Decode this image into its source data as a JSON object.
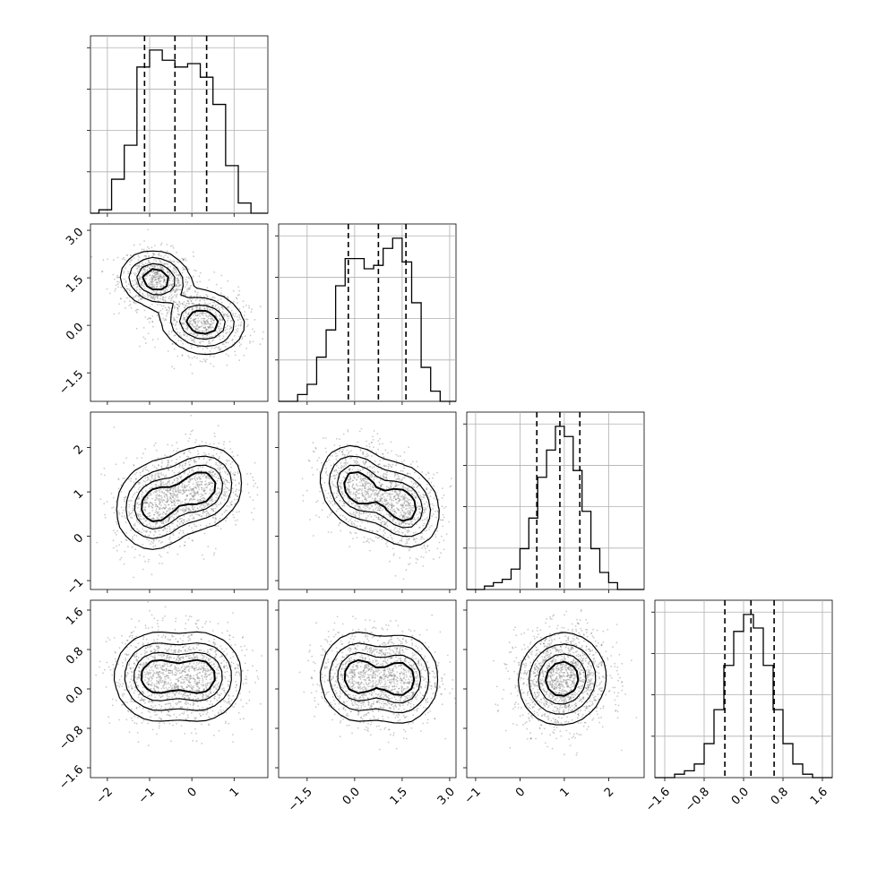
{
  "chart_data": {
    "type": "corner",
    "description_free": true,
    "variables": [
      {
        "range": [
          -2.4,
          1.8
        ],
        "ticks": [
          -2,
          -1,
          0,
          1
        ],
        "tick_labels": [
          "−2",
          "−1",
          "0",
          "1"
        ],
        "quantiles": [
          -1.12,
          -0.4,
          0.35
        ],
        "hist_bins": [
          -2.2,
          -1.9,
          -1.6,
          -1.3,
          -1.0,
          -0.7,
          -0.4,
          -0.1,
          0.2,
          0.5,
          0.8,
          1.1,
          1.4
        ],
        "hist_values": [
          0.02,
          0.2,
          0.4,
          0.86,
          0.96,
          0.9,
          0.86,
          0.88,
          0.8,
          0.64,
          0.28,
          0.06,
          0.0
        ]
      },
      {
        "range": [
          -2.4,
          3.2
        ],
        "ticks": [
          -1.5,
          0.0,
          1.5,
          3.0
        ],
        "tick_labels": [
          "−1.5",
          "0.0",
          "1.5",
          "3.0"
        ],
        "quantiles": [
          -0.2,
          0.75,
          1.62
        ],
        "hist_bins": [
          -2.1,
          -1.8,
          -1.5,
          -1.2,
          -0.9,
          -0.6,
          -0.3,
          0.0,
          0.3,
          0.6,
          0.9,
          1.2,
          1.5,
          1.8,
          2.1,
          2.4,
          2.7
        ],
        "hist_values": [
          0.0,
          0.04,
          0.1,
          0.26,
          0.42,
          0.68,
          0.84,
          0.84,
          0.78,
          0.8,
          0.9,
          0.96,
          0.82,
          0.58,
          0.2,
          0.06,
          0.0
        ]
      },
      {
        "range": [
          -1.2,
          2.8
        ],
        "ticks": [
          -1,
          0,
          1,
          2
        ],
        "tick_labels": [
          "−1",
          "0",
          "1",
          "2"
        ],
        "quantiles": [
          0.38,
          0.9,
          1.35
        ],
        "hist_bins": [
          -1.0,
          -0.8,
          -0.6,
          -0.4,
          -0.2,
          0.0,
          0.2,
          0.4,
          0.6,
          0.8,
          1.0,
          1.2,
          1.4,
          1.6,
          1.8,
          2.0,
          2.2,
          2.4
        ],
        "hist_values": [
          0.0,
          0.02,
          0.04,
          0.06,
          0.12,
          0.24,
          0.42,
          0.66,
          0.82,
          0.96,
          0.9,
          0.7,
          0.46,
          0.24,
          0.1,
          0.04,
          0.0
        ]
      },
      {
        "range": [
          -1.8,
          1.8
        ],
        "ticks": [
          -1.6,
          -0.8,
          0.0,
          0.8,
          1.6
        ],
        "tick_labels": [
          "−1.6",
          "−0.8",
          "0.0",
          "0.8",
          "1.6"
        ],
        "quantiles": [
          -0.38,
          0.15,
          0.62
        ],
        "hist_bins": [
          -1.6,
          -1.4,
          -1.2,
          -1.0,
          -0.8,
          -0.6,
          -0.4,
          -0.2,
          0.0,
          0.2,
          0.4,
          0.6,
          0.8,
          1.0,
          1.2,
          1.4,
          1.6
        ],
        "hist_values": [
          0.0,
          0.02,
          0.04,
          0.08,
          0.2,
          0.4,
          0.66,
          0.86,
          0.96,
          0.88,
          0.66,
          0.4,
          0.2,
          0.08,
          0.02,
          0.0
        ]
      }
    ],
    "pairs": [
      {
        "row": 1,
        "col": 0,
        "modes": [
          {
            "x": -0.85,
            "y": 1.45,
            "sx": 0.35,
            "sy": 0.38,
            "rho": -0.1
          },
          {
            "x": 0.25,
            "y": 0.1,
            "sx": 0.42,
            "sy": 0.42,
            "rho": -0.1
          }
        ]
      },
      {
        "row": 2,
        "col": 0,
        "modes": [
          {
            "x": -0.85,
            "y": 0.7,
            "sx": 0.4,
            "sy": 0.42,
            "rho": 0.1
          },
          {
            "x": 0.2,
            "y": 1.1,
            "sx": 0.42,
            "sy": 0.4,
            "rho": 0.1
          }
        ]
      },
      {
        "row": 2,
        "col": 1,
        "modes": [
          {
            "x": 0.1,
            "y": 1.1,
            "sx": 0.5,
            "sy": 0.4,
            "rho": -0.2
          },
          {
            "x": 1.5,
            "y": 0.7,
            "sx": 0.5,
            "sy": 0.4,
            "rho": -0.2
          }
        ]
      },
      {
        "row": 3,
        "col": 0,
        "modes": [
          {
            "x": -0.85,
            "y": 0.25,
            "sx": 0.42,
            "sy": 0.38,
            "rho": 0.0
          },
          {
            "x": 0.2,
            "y": 0.25,
            "sx": 0.42,
            "sy": 0.38,
            "rho": 0.0
          }
        ]
      },
      {
        "row": 3,
        "col": 1,
        "modes": [
          {
            "x": 0.1,
            "y": 0.25,
            "sx": 0.5,
            "sy": 0.38,
            "rho": 0.0
          },
          {
            "x": 1.45,
            "y": 0.2,
            "sx": 0.5,
            "sy": 0.38,
            "rho": 0.0
          }
        ]
      },
      {
        "row": 3,
        "col": 2,
        "modes": [
          {
            "x": 0.95,
            "y": 0.2,
            "sx": 0.42,
            "sy": 0.4,
            "rho": 0.05
          }
        ]
      }
    ],
    "grid": true,
    "contour_levels": [
      0.3,
      0.55,
      0.8,
      0.95
    ]
  }
}
